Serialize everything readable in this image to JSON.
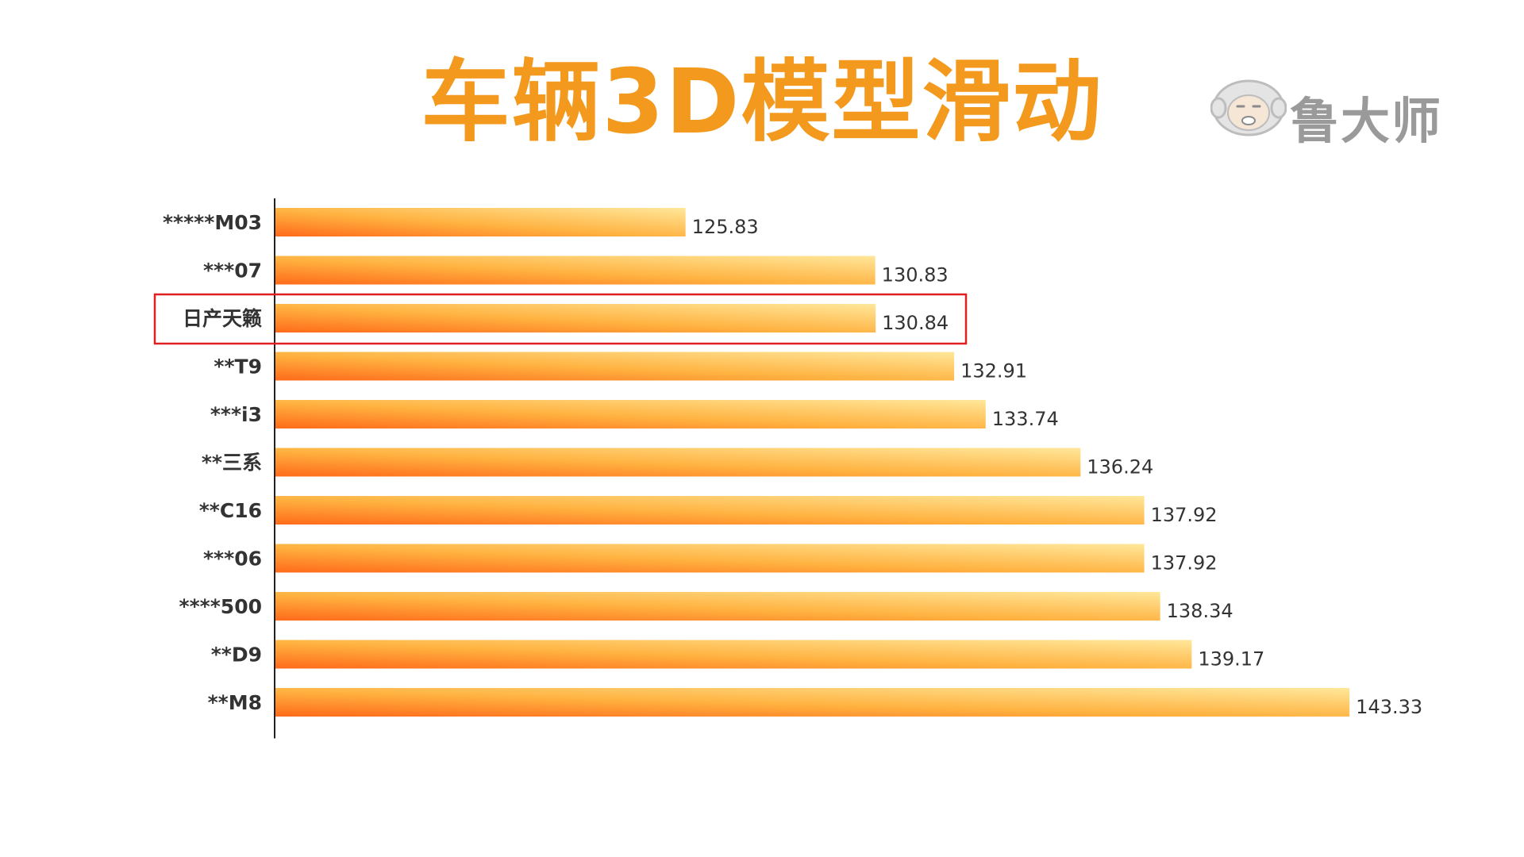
{
  "title": "车辆3D模型滑动",
  "logo": {
    "text": "鲁大师",
    "icon": "monkey-face-icon"
  },
  "colors": {
    "title": "#F39A1E",
    "bar_start": "#FF6A1A",
    "bar_mid": "#FFB240",
    "bar_end": "#FFE79A",
    "highlight_box": "#E02020",
    "logo": "#9a9a9a"
  },
  "chart_data": {
    "type": "bar",
    "orientation": "horizontal",
    "categories": [
      "*****M03",
      "***07",
      "日产天籁",
      "**T9",
      "***i3",
      "**三系",
      "**C16",
      "***06",
      "****500",
      "**D9",
      "**M8"
    ],
    "values": [
      125.83,
      130.83,
      130.84,
      132.91,
      133.74,
      136.24,
      137.92,
      137.92,
      138.34,
      139.17,
      143.33
    ],
    "highlight": "日产天籁",
    "xlim": [
      115,
      145
    ],
    "title": "车辆3D模型滑动",
    "xlabel": "",
    "ylabel": "",
    "grid": false,
    "legend": "none"
  }
}
